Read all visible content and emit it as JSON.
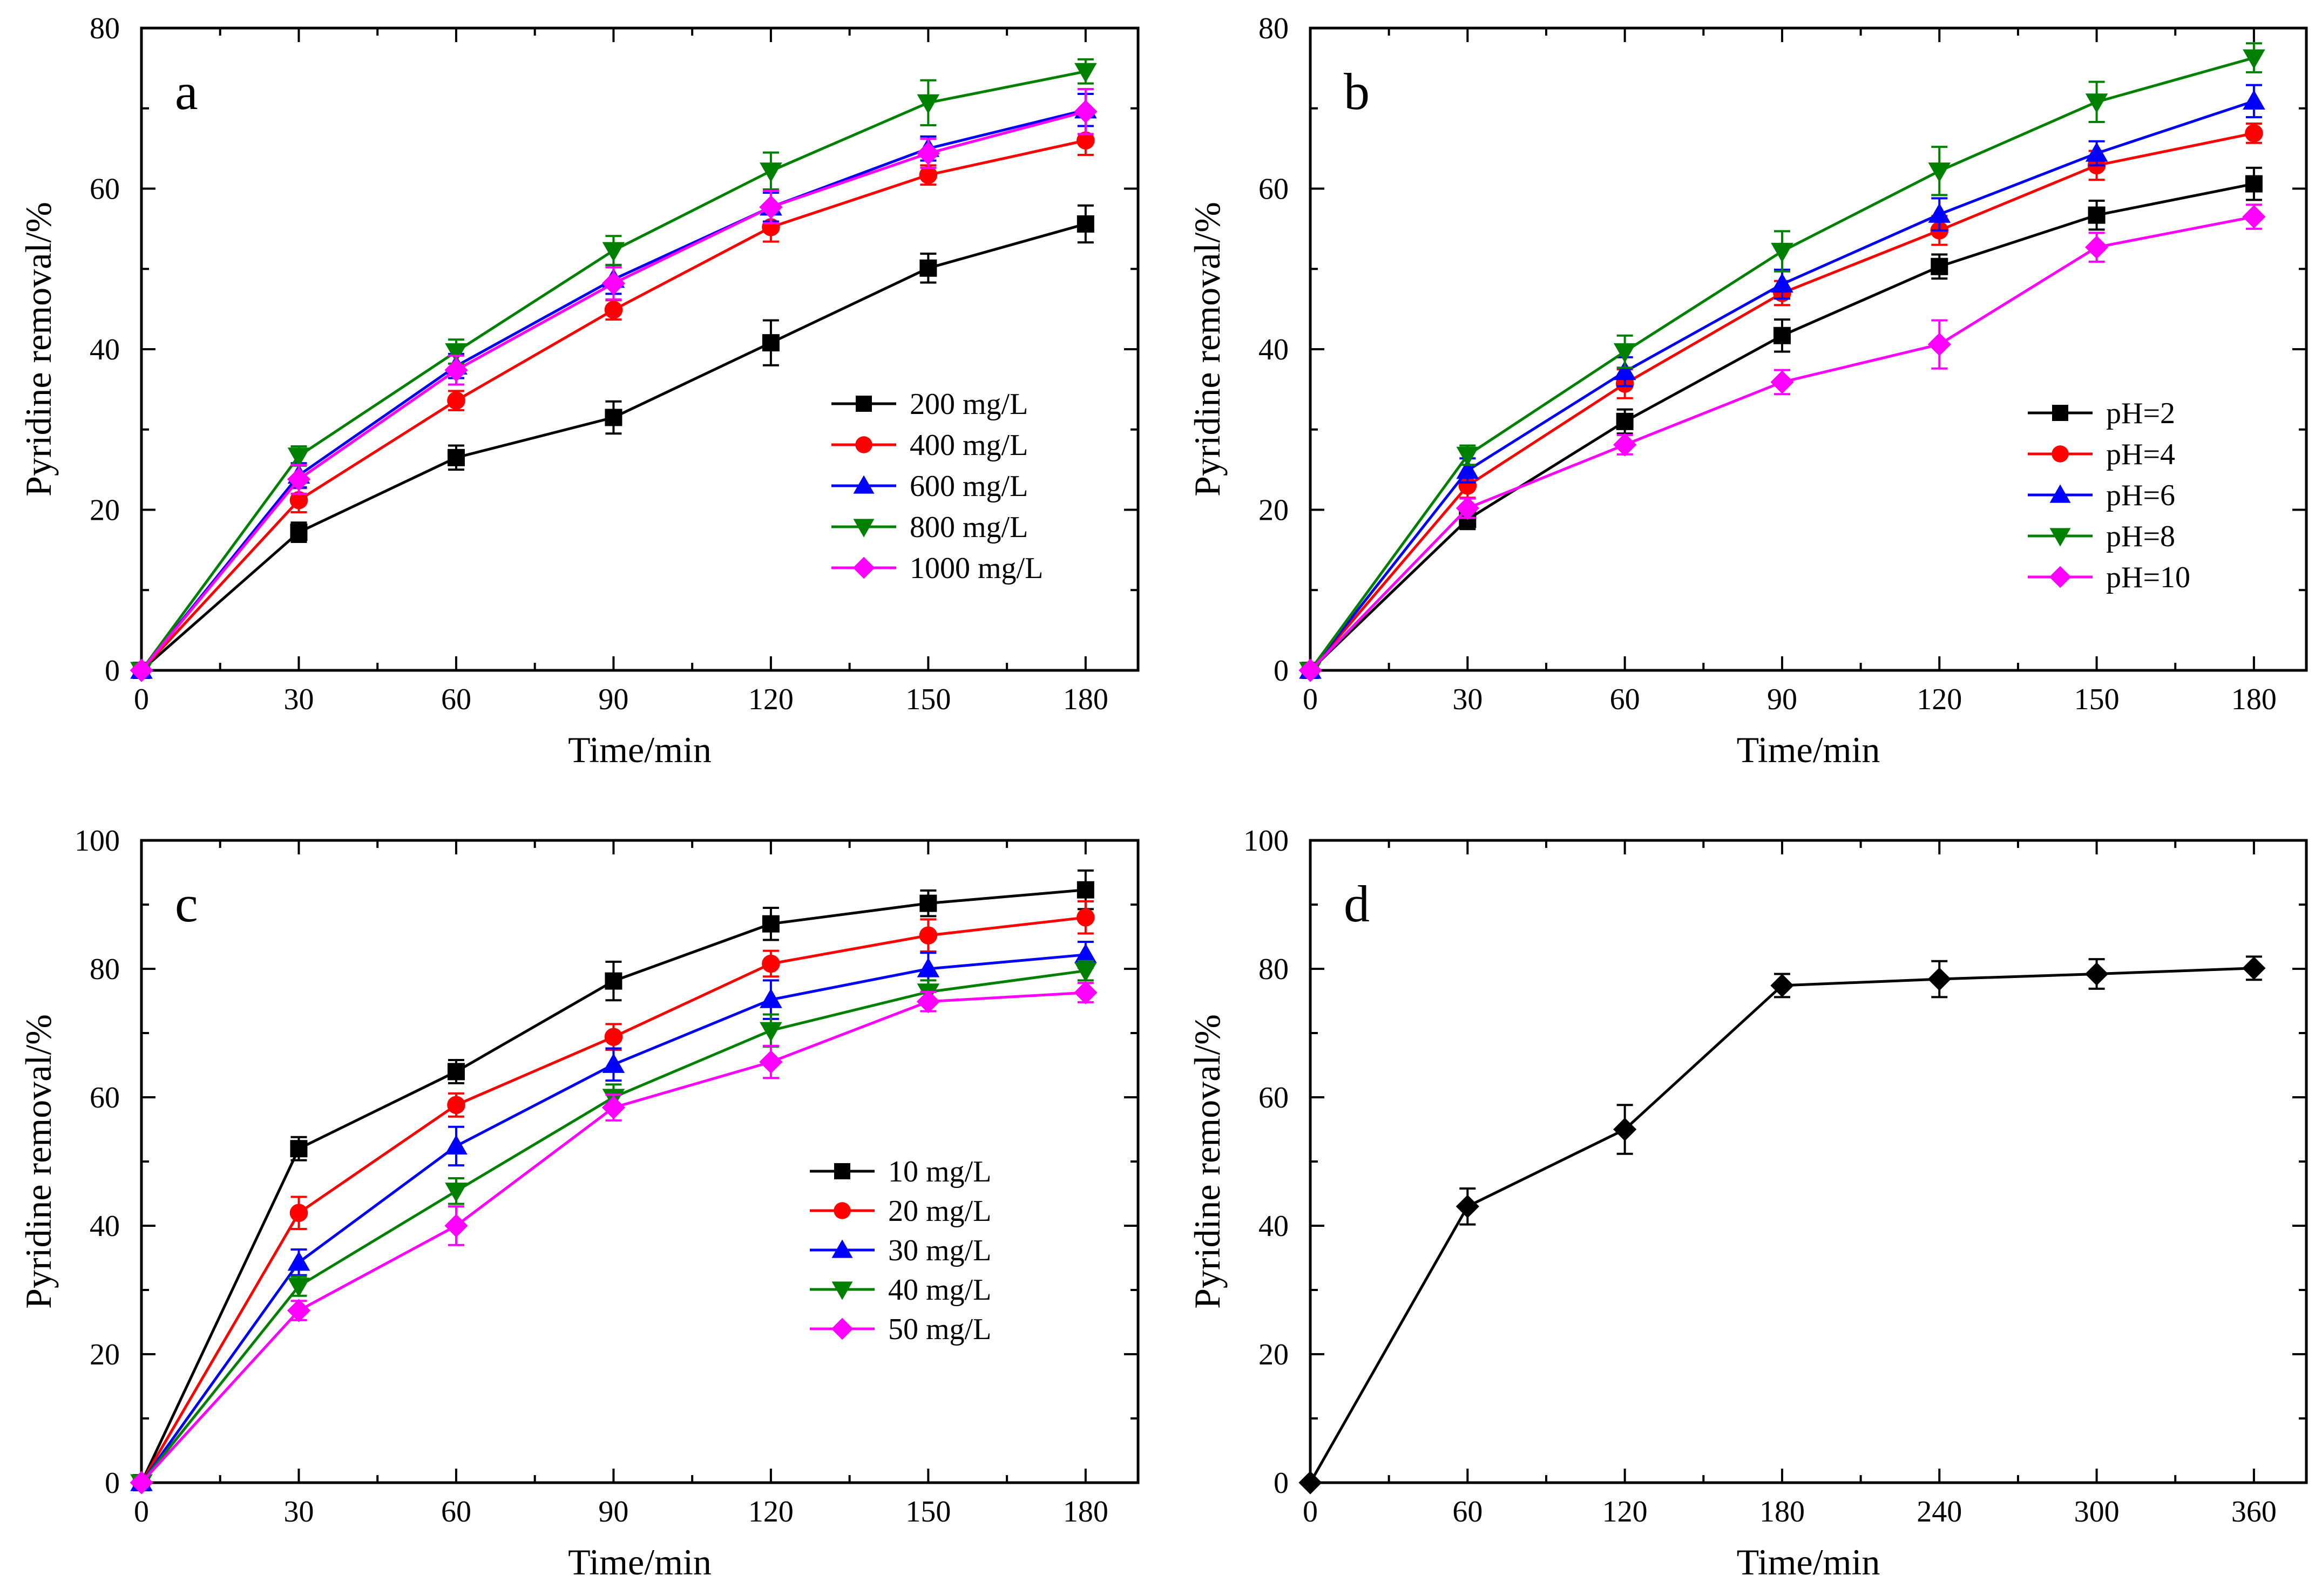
{
  "chart_data": [
    {
      "type": "line",
      "panel_label": "a",
      "xlabel": "Time/min",
      "ylabel": "Pyridine removal/%",
      "xlim": [
        0,
        190
      ],
      "ylim": [
        0,
        80
      ],
      "xticks": [
        0,
        30,
        60,
        90,
        120,
        150,
        180
      ],
      "yticks": [
        0,
        20,
        40,
        60,
        80
      ],
      "legend_position": "center-right",
      "x": [
        0,
        30,
        60,
        90,
        120,
        150,
        180
      ],
      "series": [
        {
          "name": "200 mg/L",
          "color": "#000000",
          "marker": "square",
          "values": [
            0,
            17.2,
            26.5,
            31.5,
            40.8,
            50.1,
            55.6
          ],
          "errors": [
            0,
            1.2,
            1.5,
            2.0,
            2.8,
            1.8,
            2.3
          ]
        },
        {
          "name": "400 mg/L",
          "color": "#ff0000",
          "marker": "circle",
          "values": [
            0,
            21.2,
            33.6,
            44.9,
            55.2,
            61.7,
            66.0
          ],
          "errors": [
            0,
            1.5,
            1.2,
            1.2,
            1.8,
            1.2,
            1.8
          ]
        },
        {
          "name": "600 mg/L",
          "color": "#0000ff",
          "marker": "triangle-up",
          "values": [
            0,
            24.3,
            37.9,
            48.7,
            57.7,
            65.0,
            69.8
          ],
          "errors": [
            0,
            1.5,
            1.5,
            1.8,
            1.8,
            1.5,
            2.0
          ]
        },
        {
          "name": "800 mg/L",
          "color": "#008000",
          "marker": "triangle-down",
          "values": [
            0,
            26.7,
            39.7,
            52.3,
            62.2,
            70.7,
            74.6
          ],
          "errors": [
            0,
            1.2,
            1.5,
            1.8,
            2.3,
            2.8,
            1.5
          ]
        },
        {
          "name": "1000 mg/L",
          "color": "#ff00ff",
          "marker": "diamond",
          "values": [
            0,
            23.8,
            37.4,
            48.2,
            57.7,
            64.4,
            69.6
          ],
          "errors": [
            0,
            1.8,
            1.8,
            2.0,
            2.0,
            1.8,
            2.8
          ]
        }
      ]
    },
    {
      "type": "line",
      "panel_label": "b",
      "xlabel": "Time/min",
      "ylabel": "Pyridine removal/%",
      "xlim": [
        0,
        190
      ],
      "ylim": [
        0,
        80
      ],
      "xticks": [
        0,
        30,
        60,
        90,
        120,
        150,
        180
      ],
      "yticks": [
        0,
        20,
        40,
        60,
        80
      ],
      "legend_position": "center-right",
      "x": [
        0,
        30,
        60,
        90,
        120,
        150,
        180
      ],
      "series": [
        {
          "name": "pH=2",
          "color": "#000000",
          "marker": "square",
          "values": [
            0,
            18.8,
            31.0,
            41.7,
            50.3,
            56.7,
            60.6
          ],
          "errors": [
            0,
            1.2,
            1.5,
            2.0,
            1.5,
            1.8,
            2.0
          ]
        },
        {
          "name": "pH=4",
          "color": "#ff0000",
          "marker": "circle",
          "values": [
            0,
            23.0,
            35.7,
            47.0,
            54.8,
            62.9,
            66.9
          ],
          "errors": [
            0,
            1.5,
            1.8,
            1.5,
            1.8,
            1.8,
            1.2
          ]
        },
        {
          "name": "pH=6",
          "color": "#0000ff",
          "marker": "triangle-up",
          "values": [
            0,
            24.9,
            37.2,
            48.1,
            56.8,
            64.4,
            70.9
          ],
          "errors": [
            0,
            1.5,
            1.8,
            1.8,
            2.0,
            1.5,
            2.0
          ]
        },
        {
          "name": "pH=8",
          "color": "#008000",
          "marker": "triangle-down",
          "values": [
            0,
            26.8,
            39.7,
            52.2,
            62.2,
            70.8,
            76.3
          ],
          "errors": [
            0,
            1.2,
            2.0,
            2.5,
            3.0,
            2.5,
            1.8
          ]
        },
        {
          "name": "pH=10",
          "color": "#ff00ff",
          "marker": "diamond",
          "values": [
            0,
            20.2,
            28.1,
            35.9,
            40.6,
            52.7,
            56.5
          ],
          "errors": [
            0,
            1.2,
            1.2,
            1.5,
            3.0,
            1.8,
            1.5
          ]
        }
      ]
    },
    {
      "type": "line",
      "panel_label": "c",
      "xlabel": "Time/min",
      "ylabel": "Pyridine removal/%",
      "xlim": [
        0,
        190
      ],
      "ylim": [
        0,
        100
      ],
      "xticks": [
        0,
        30,
        60,
        90,
        120,
        150,
        180
      ],
      "yticks": [
        0,
        20,
        40,
        60,
        80,
        100
      ],
      "legend_position": "center-right",
      "x": [
        0,
        30,
        60,
        90,
        120,
        150,
        180
      ],
      "series": [
        {
          "name": "10 mg/L",
          "color": "#000000",
          "marker": "square",
          "values": [
            0,
            52.0,
            64.0,
            78.1,
            87.0,
            90.2,
            92.3
          ],
          "errors": [
            0,
            1.8,
            1.8,
            3.0,
            2.5,
            2.0,
            3.0
          ]
        },
        {
          "name": "20 mg/L",
          "color": "#ff0000",
          "marker": "circle",
          "values": [
            0,
            42.0,
            58.8,
            69.4,
            80.8,
            85.2,
            88.0
          ],
          "errors": [
            0,
            2.5,
            1.8,
            2.0,
            2.0,
            2.5,
            2.5
          ]
        },
        {
          "name": "30 mg/L",
          "color": "#0000ff",
          "marker": "triangle-up",
          "values": [
            0,
            34.3,
            52.4,
            65.1,
            75.2,
            80.0,
            82.2
          ],
          "errors": [
            0,
            2.0,
            3.0,
            2.5,
            3.0,
            2.5,
            2.0
          ]
        },
        {
          "name": "40 mg/L",
          "color": "#008000",
          "marker": "triangle-down",
          "values": [
            0,
            30.6,
            45.4,
            60.0,
            70.4,
            76.4,
            79.7
          ],
          "errors": [
            0,
            1.5,
            2.0,
            2.0,
            2.5,
            1.8,
            1.5
          ]
        },
        {
          "name": "50 mg/L",
          "color": "#ff00ff",
          "marker": "diamond",
          "values": [
            0,
            26.8,
            40.0,
            58.4,
            65.5,
            74.9,
            76.3
          ],
          "errors": [
            0,
            1.5,
            3.0,
            2.0,
            2.5,
            1.5,
            1.5
          ]
        }
      ]
    },
    {
      "type": "line",
      "panel_label": "d",
      "xlabel": "Time/min",
      "ylabel": "Pyridine removal/%",
      "xlim": [
        0,
        380
      ],
      "ylim": [
        0,
        100
      ],
      "xticks": [
        0,
        60,
        120,
        180,
        240,
        300,
        360
      ],
      "yticks": [
        0,
        20,
        40,
        60,
        80,
        100
      ],
      "legend_position": "none",
      "x": [
        0,
        60,
        120,
        180,
        240,
        300,
        360
      ],
      "series": [
        {
          "name": "",
          "color": "#000000",
          "marker": "diamond",
          "values": [
            0,
            43.0,
            55.0,
            77.4,
            78.4,
            79.2,
            80.1
          ],
          "errors": [
            0,
            2.8,
            3.8,
            1.8,
            2.8,
            2.3,
            1.8
          ]
        }
      ]
    }
  ]
}
